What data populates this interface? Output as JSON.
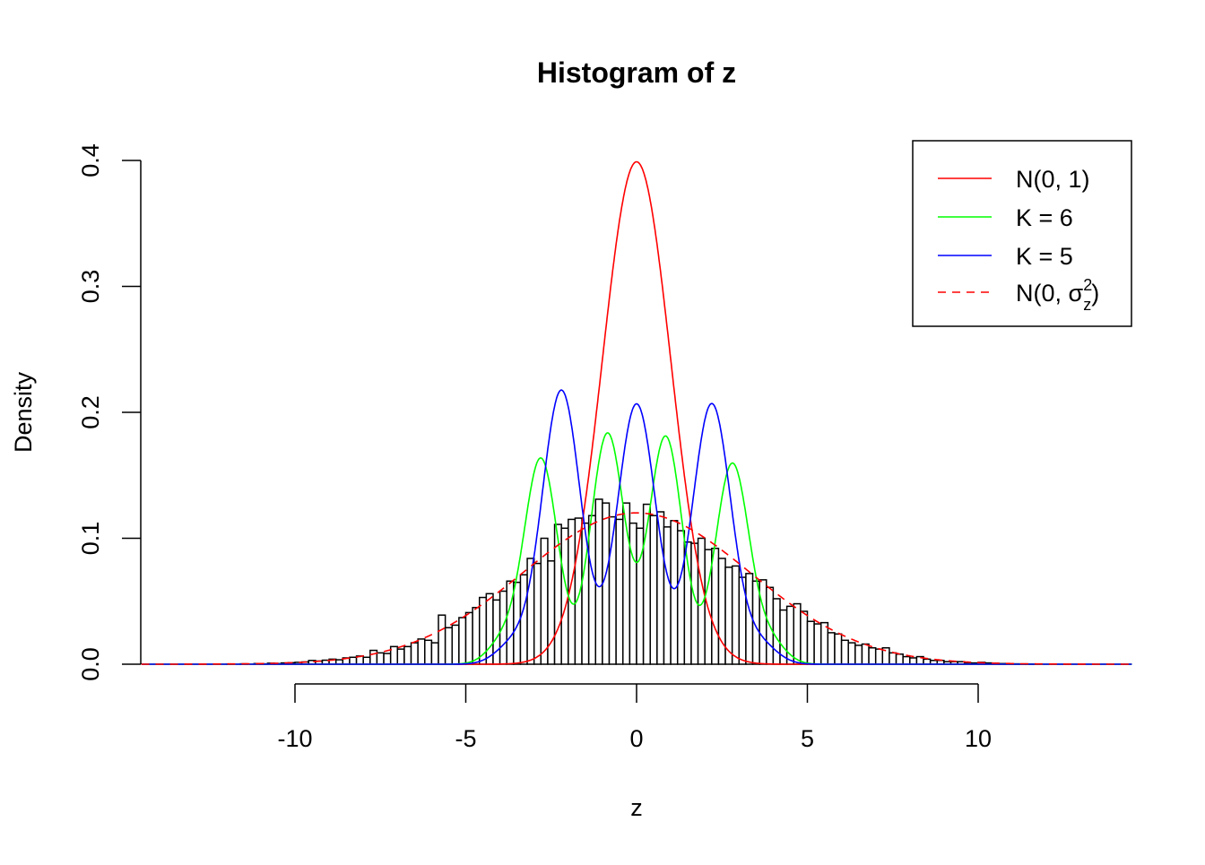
{
  "chart_data": {
    "type": "histogram",
    "title": "Histogram of z",
    "xlabel": "z",
    "ylabel": "Density",
    "xlim": [
      -14.5,
      14.5
    ],
    "ylim": [
      0,
      0.4
    ],
    "x_ticks": [
      -10,
      -5,
      0,
      5,
      10
    ],
    "x_tick_labels": [
      "-10",
      "-5",
      "0",
      "5",
      "10"
    ],
    "y_ticks": [
      0,
      0.1,
      0.2,
      0.3,
      0.4
    ],
    "y_tick_labels": [
      "0.0",
      "0.1",
      "0.2",
      "0.3",
      "0.4"
    ],
    "grid": false,
    "bins": {
      "start": -12,
      "width": 0.2,
      "density": [
        0.0002,
        0,
        0.0003,
        0,
        0.0005,
        0.0003,
        0.0008,
        0.0005,
        0.001,
        0.0012,
        0.0015,
        0.0018,
        0.003,
        0.0025,
        0.0032,
        0.004,
        0.0035,
        0.005,
        0.0055,
        0.0065,
        0.0055,
        0.011,
        0.009,
        0.0085,
        0.014,
        0.012,
        0.014,
        0.017,
        0.02,
        0.019,
        0.017,
        0.039,
        0.029,
        0.031,
        0.037,
        0.041,
        0.045,
        0.053,
        0.056,
        0.051,
        0.058,
        0.066,
        0.065,
        0.071,
        0.084,
        0.08,
        0.1,
        0.082,
        0.111,
        0.108,
        0.115,
        0.116,
        0.112,
        0.118,
        0.131,
        0.128,
        0.117,
        0.115,
        0.128,
        0.112,
        0.108,
        0.127,
        0.118,
        0.121,
        0.109,
        0.114,
        0.106,
        0.097,
        0.096,
        0.1,
        0.091,
        0.092,
        0.084,
        0.077,
        0.078,
        0.069,
        0.072,
        0.066,
        0.067,
        0.061,
        0.052,
        0.043,
        0.046,
        0.048,
        0.042,
        0.034,
        0.032,
        0.033,
        0.025,
        0.024,
        0.019,
        0.017,
        0.015,
        0.016,
        0.013,
        0.012,
        0.013,
        0.009,
        0.008,
        0.006,
        0.005,
        0.006,
        0.004,
        0.003,
        0.003,
        0.002,
        0.002,
        0.002,
        0.001,
        0.001,
        0.0015,
        0.001,
        0.0008,
        0.0005,
        0.0004,
        0.0003,
        0.0002,
        0.0002,
        0.0001,
        0
      ]
    },
    "curves": [
      {
        "name": "N(0, 1)",
        "color": "#ff0000",
        "dash": false,
        "components": [
          {
            "mean": 0,
            "sd": 1,
            "weight": 1
          }
        ]
      },
      {
        "name": "K = 6",
        "color": "#00ff00",
        "dash": false,
        "components": [
          {
            "mean": -2.8,
            "sd": 0.49,
            "weight": 0.2
          },
          {
            "mean": -0.85,
            "sd": 0.49,
            "weight": 0.225
          },
          {
            "mean": 0.85,
            "sd": 0.49,
            "weight": 0.222
          },
          {
            "mean": 2.8,
            "sd": 0.49,
            "weight": 0.195
          },
          {
            "mean": -3.9,
            "sd": 0.45,
            "weight": 0.02
          },
          {
            "mean": 3.9,
            "sd": 0.45,
            "weight": 0.02
          }
        ]
      },
      {
        "name": "K = 5",
        "color": "#0000ff",
        "dash": false,
        "components": [
          {
            "mean": -2.2,
            "sd": 0.56,
            "weight": 0.305
          },
          {
            "mean": 0,
            "sd": 0.56,
            "weight": 0.29
          },
          {
            "mean": 2.2,
            "sd": 0.56,
            "weight": 0.29
          },
          {
            "mean": -3.6,
            "sd": 0.5,
            "weight": 0.02
          },
          {
            "mean": 3.6,
            "sd": 0.5,
            "weight": 0.02
          }
        ]
      },
      {
        "name": "N(0, σz²)",
        "color": "#ff0000",
        "dash": true,
        "components": [
          {
            "mean": 0,
            "sd": 3.32,
            "weight": 1
          }
        ]
      }
    ],
    "legend": {
      "placement": "top-right",
      "entries": [
        {
          "label": "N(0, 1)"
        },
        {
          "label": "K = 6"
        },
        {
          "label": "K = 5"
        },
        {
          "label_main": "N(0, σ",
          "label_sup": "2",
          "label_sub": "z",
          "label_end": ")"
        }
      ]
    }
  }
}
